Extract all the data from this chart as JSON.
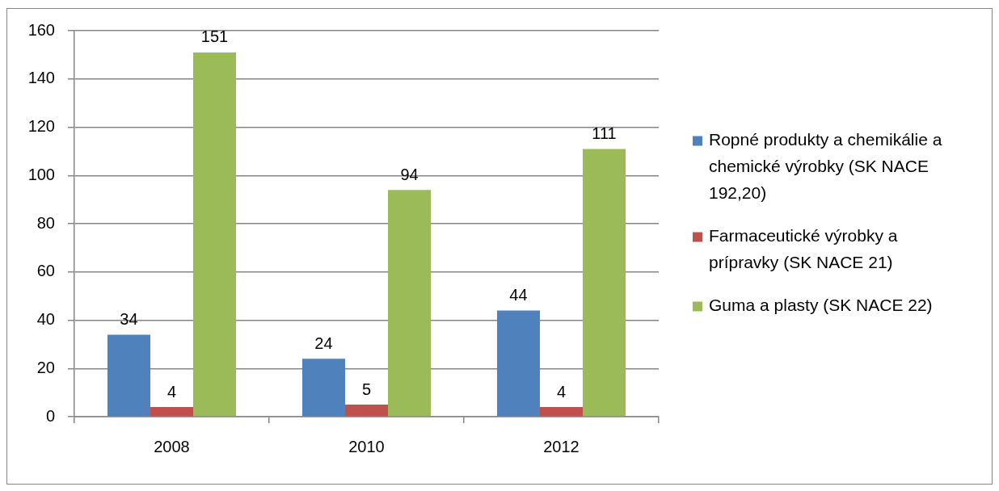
{
  "chart_data": {
    "type": "bar",
    "categories": [
      "2008",
      "2010",
      "2012"
    ],
    "series": [
      {
        "name": "Ropné produkty a chemikálie a chemické výrobky (SK NACE 192,20)",
        "color": "#4f81bd",
        "values": [
          34,
          24,
          44
        ]
      },
      {
        "name": "Farmaceutické výrobky a prípravky (SK NACE 21)",
        "color": "#c0504d",
        "values": [
          4,
          5,
          4
        ]
      },
      {
        "name": "Guma a plasty (SK NACE 22)",
        "color": "#9bbb59",
        "values": [
          151,
          94,
          111
        ]
      }
    ],
    "ylim": [
      0,
      160
    ],
    "yticks": [
      0,
      20,
      40,
      60,
      80,
      100,
      120,
      140,
      160
    ],
    "grid": "y",
    "legend": "right",
    "data_labels": true
  }
}
